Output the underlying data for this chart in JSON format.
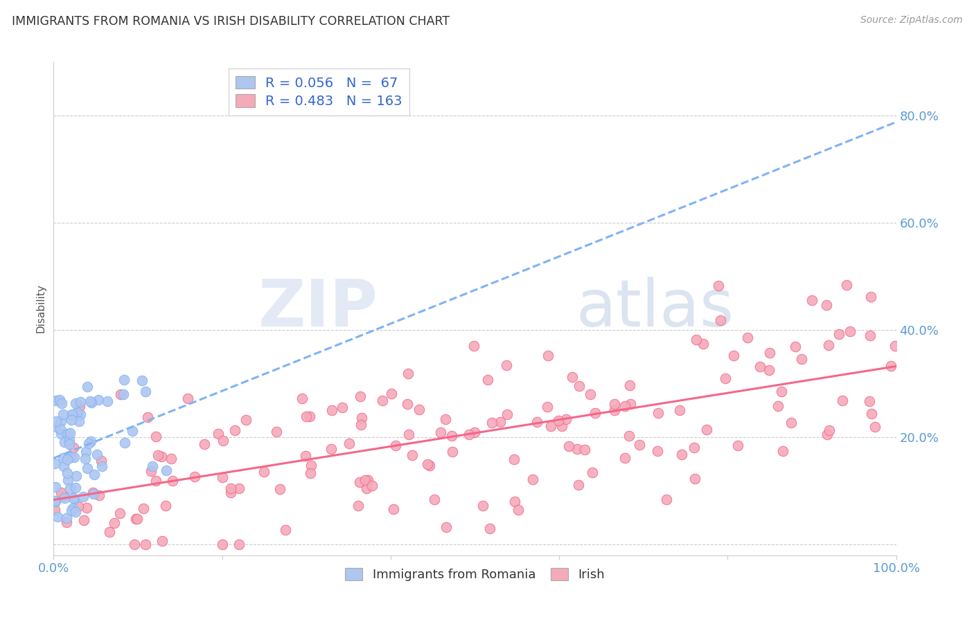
{
  "title": "IMMIGRANTS FROM ROMANIA VS IRISH DISABILITY CORRELATION CHART",
  "source": "Source: ZipAtlas.com",
  "ylabel": "Disability",
  "xlabel": "",
  "xlim": [
    0.0,
    1.0
  ],
  "ylim": [
    -0.02,
    0.9
  ],
  "x_ticks": [
    0.0,
    0.2,
    0.4,
    0.6,
    0.8,
    1.0
  ],
  "x_tick_labels": [
    "0.0%",
    "",
    "",
    "",
    "",
    "100.0%"
  ],
  "y_ticks": [
    0.0,
    0.2,
    0.4,
    0.6,
    0.8
  ],
  "y_tick_labels": [
    "",
    "20.0%",
    "40.0%",
    "60.0%",
    "80.0%"
  ],
  "legend_label1": "Immigrants from Romania",
  "legend_label2": "Irish",
  "R1": 0.056,
  "N1": 67,
  "R2": 0.483,
  "N2": 163,
  "color1": "#aec6f0",
  "color2": "#f4aab9",
  "line1_color": "#7fb3f5",
  "line2_color": "#f4678a",
  "watermark_zip": "ZIP",
  "watermark_atlas": "atlas",
  "background_color": "#ffffff",
  "grid_color": "#cccccc",
  "title_color": "#333333",
  "tick_color": "#5b9bd5",
  "source_color": "#999999"
}
